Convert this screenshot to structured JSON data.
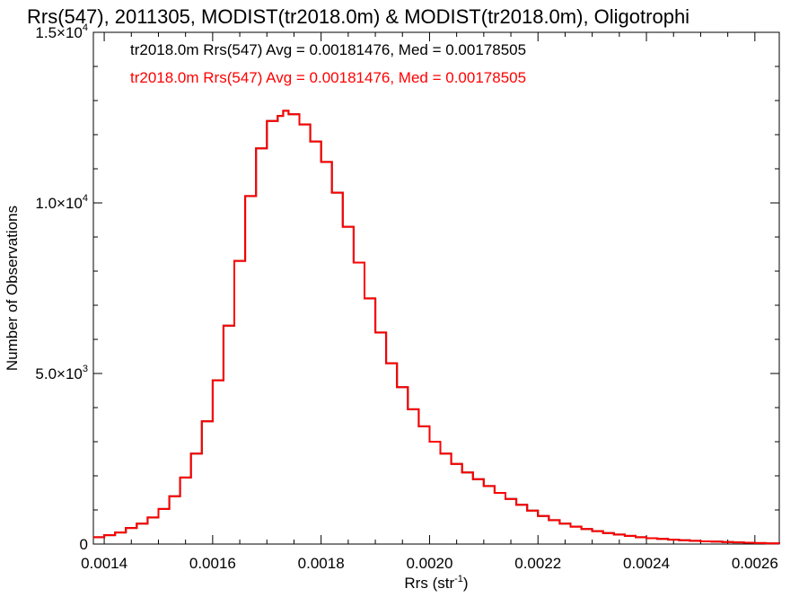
{
  "chart_data": {
    "type": "line",
    "title": "Rrs(547), 2011305, MODIST(tr2018.0m) & MODIST(tr2018.0m), Oligotrophi",
    "xlabel": {
      "base": "Rrs (str",
      "sup": "-1",
      "end": ")"
    },
    "ylabel": "Number of Observations",
    "xlim": [
      0.00138,
      0.002645
    ],
    "ylim": [
      0,
      15000
    ],
    "grid": false,
    "legend_position": "top-left",
    "x_ticks": [
      {
        "value": 0.0014,
        "label": "0.0014"
      },
      {
        "value": 0.0016,
        "label": "0.0016"
      },
      {
        "value": 0.0018,
        "label": "0.0018"
      },
      {
        "value": 0.002,
        "label": "0.0020"
      },
      {
        "value": 0.0022,
        "label": "0.0022"
      },
      {
        "value": 0.0024,
        "label": "0.0024"
      },
      {
        "value": 0.0026,
        "label": "0.0026"
      }
    ],
    "y_ticks": [
      {
        "value": 0,
        "mant": "0",
        "exp": ""
      },
      {
        "value": 5000,
        "mant": "5.0×10",
        "exp": "3"
      },
      {
        "value": 10000,
        "mant": "1.0×10",
        "exp": "4"
      },
      {
        "value": 15000,
        "mant": "1.5×10",
        "exp": "4"
      }
    ],
    "annotations": [
      {
        "text": "tr2018.0m Rrs(547) Avg = 0.00181476, Med = 0.00178505",
        "color": "#000000"
      },
      {
        "text": "tr2018.0m Rrs(547) Avg = 0.00181476, Med = 0.00178505",
        "color": "#ff0000"
      }
    ],
    "series": [
      {
        "color": "#000000",
        "step": true,
        "x": [
          0.00138,
          0.0014,
          0.00142,
          0.00144,
          0.00146,
          0.00148,
          0.0015,
          0.00152,
          0.00154,
          0.00156,
          0.00158,
          0.0016,
          0.00162,
          0.00164,
          0.00166,
          0.00168,
          0.0017,
          0.00172,
          0.00173,
          0.00174,
          0.00176,
          0.00178,
          0.0018,
          0.00182,
          0.00184,
          0.00186,
          0.00188,
          0.0019,
          0.00192,
          0.00194,
          0.00196,
          0.00198,
          0.002,
          0.00202,
          0.00204,
          0.00206,
          0.00208,
          0.0021,
          0.00212,
          0.00214,
          0.00216,
          0.00218,
          0.0022,
          0.00222,
          0.00224,
          0.00226,
          0.00228,
          0.0023,
          0.00232,
          0.00234,
          0.00236,
          0.00238,
          0.0024,
          0.00242,
          0.00244,
          0.00246,
          0.00248,
          0.0025,
          0.00252,
          0.00254,
          0.00256,
          0.00258,
          0.0026,
          0.00262,
          0.002645
        ],
        "y": [
          200,
          260,
          340,
          470,
          600,
          780,
          1030,
          1400,
          1950,
          2650,
          3600,
          4800,
          6400,
          8300,
          10200,
          11600,
          12400,
          12550,
          12700,
          12600,
          12300,
          11800,
          11200,
          10300,
          9300,
          8250,
          7200,
          6200,
          5300,
          4600,
          3950,
          3450,
          3000,
          2650,
          2350,
          2100,
          1900,
          1700,
          1500,
          1320,
          1150,
          980,
          820,
          700,
          600,
          510,
          440,
          380,
          320,
          280,
          240,
          200,
          170,
          150,
          130,
          110,
          95,
          80,
          70,
          60,
          50,
          40,
          30,
          20,
          10
        ]
      },
      {
        "color": "#ff0000",
        "step": true,
        "x": [
          0.00138,
          0.0014,
          0.00142,
          0.00144,
          0.00146,
          0.00148,
          0.0015,
          0.00152,
          0.00154,
          0.00156,
          0.00158,
          0.0016,
          0.00162,
          0.00164,
          0.00166,
          0.00168,
          0.0017,
          0.00172,
          0.00173,
          0.00174,
          0.00176,
          0.00178,
          0.0018,
          0.00182,
          0.00184,
          0.00186,
          0.00188,
          0.0019,
          0.00192,
          0.00194,
          0.00196,
          0.00198,
          0.002,
          0.00202,
          0.00204,
          0.00206,
          0.00208,
          0.0021,
          0.00212,
          0.00214,
          0.00216,
          0.00218,
          0.0022,
          0.00222,
          0.00224,
          0.00226,
          0.00228,
          0.0023,
          0.00232,
          0.00234,
          0.00236,
          0.00238,
          0.0024,
          0.00242,
          0.00244,
          0.00246,
          0.00248,
          0.0025,
          0.00252,
          0.00254,
          0.00256,
          0.00258,
          0.0026,
          0.00262,
          0.002645
        ],
        "y": [
          200,
          260,
          340,
          470,
          600,
          780,
          1030,
          1400,
          1950,
          2650,
          3600,
          4800,
          6400,
          8300,
          10200,
          11600,
          12400,
          12550,
          12700,
          12600,
          12300,
          11800,
          11200,
          10300,
          9300,
          8250,
          7200,
          6200,
          5300,
          4600,
          3950,
          3450,
          3000,
          2650,
          2350,
          2100,
          1900,
          1700,
          1500,
          1320,
          1150,
          980,
          820,
          700,
          600,
          510,
          440,
          380,
          320,
          280,
          240,
          200,
          170,
          150,
          130,
          110,
          95,
          80,
          70,
          60,
          50,
          40,
          30,
          20,
          10
        ]
      }
    ]
  }
}
